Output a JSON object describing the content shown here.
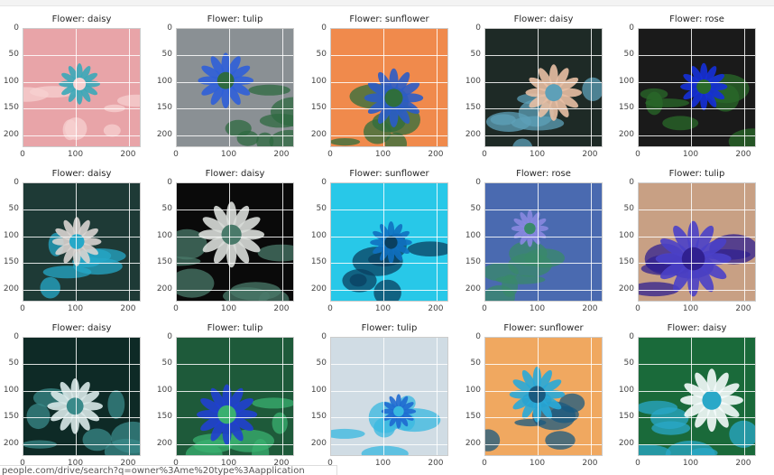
{
  "status_url": "people.com/drive/search?q=owner%3Ame%20type%3Aapplication",
  "chart_data": {
    "type": "image_grid",
    "rows": 3,
    "cols": 5,
    "xlim": [
      0,
      224
    ],
    "ylim": [
      224,
      0
    ],
    "xticks": [
      0,
      100,
      200
    ],
    "yticks": [
      0,
      50,
      100,
      150,
      200
    ],
    "panels": [
      {
        "title": "Flower: daisy",
        "palette": [
          "#e8a4a8",
          "#3aa8b8",
          "#f7d0d0"
        ]
      },
      {
        "title": "Flower: tulip",
        "palette": [
          "#8a9094",
          "#2f5fd8",
          "#2e6a40"
        ]
      },
      {
        "title": "Flower: sunflower",
        "palette": [
          "#f08a4c",
          "#2b5cc8",
          "#2f6e3c"
        ]
      },
      {
        "title": "Flower: daisy",
        "palette": [
          "#1e2a26",
          "#e8bfa4",
          "#5ea0b8"
        ]
      },
      {
        "title": "Flower: rose",
        "palette": [
          "#1a1a1a",
          "#1530d8",
          "#2a6a2a"
        ]
      },
      {
        "title": "Flower: daisy",
        "palette": [
          "#1e3a36",
          "#d8d4d0",
          "#26a8c8"
        ]
      },
      {
        "title": "Flower: daisy",
        "palette": [
          "#0a0a0a",
          "#d8dcd8",
          "#4a7a6a"
        ]
      },
      {
        "title": "Flower: sunflower",
        "palette": [
          "#28c8e8",
          "#1070c0",
          "#0a4060"
        ]
      },
      {
        "title": "Flower: rose",
        "palette": [
          "#4a6ab0",
          "#8888e0",
          "#3a8a6a"
        ]
      },
      {
        "title": "Flower: tulip",
        "palette": [
          "#c8a084",
          "#4a40c8",
          "#302090"
        ]
      },
      {
        "title": "Flower: daisy",
        "palette": [
          "#0e2a26",
          "#d8e8e8",
          "#3a8a8a"
        ]
      },
      {
        "title": "Flower: tulip",
        "palette": [
          "#1e5a3a",
          "#2040d0",
          "#3ab070"
        ]
      },
      {
        "title": "Flower: tulip",
        "palette": [
          "#d0dce4",
          "#1e6ad0",
          "#38b8e0"
        ]
      },
      {
        "title": "Flower: sunflower",
        "palette": [
          "#f0a860",
          "#28a8d8",
          "#1a5a80"
        ]
      },
      {
        "title": "Flower: daisy",
        "palette": [
          "#1a6a3a",
          "#f4fbfb",
          "#2aa8c8"
        ]
      }
    ]
  }
}
